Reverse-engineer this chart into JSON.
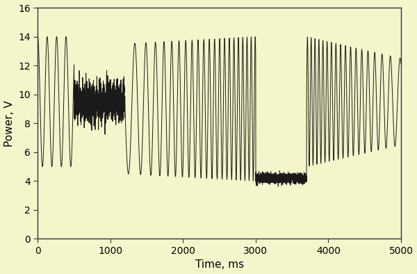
{
  "title": "",
  "xlabel": "Time, ms",
  "ylabel": "Power, V",
  "xlim": [
    0,
    5000
  ],
  "ylim": [
    0,
    16
  ],
  "xticks": [
    0,
    1000,
    2000,
    3000,
    4000,
    5000
  ],
  "yticks": [
    0,
    2,
    4,
    6,
    8,
    10,
    12,
    14,
    16
  ],
  "background_color": "#f5f5cc",
  "line_color": "#1a1a1a",
  "line_width": 0.7
}
